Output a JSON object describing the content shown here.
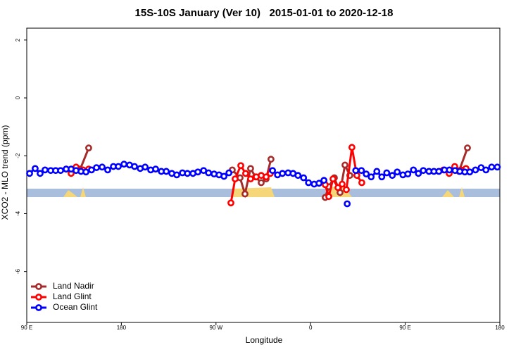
{
  "chart_data": {
    "type": "line",
    "title": "15S-10S January (Ver 10)   2015-01-01 to 2020-12-18",
    "x_label": "Longitude",
    "y_label": "XCO2 - MLO trend (ppm)",
    "xlim": [
      90,
      540
    ],
    "ylim": [
      -7.76,
      2.41
    ],
    "xticks": [
      {
        "value": 90,
        "label": "90 E"
      },
      180,
      {
        "value": 270,
        "label": "90 W"
      },
      {
        "value": 360,
        "label": "0"
      },
      {
        "value": 450,
        "label": "90 E"
      },
      {
        "value": 540,
        "label": "180"
      }
    ],
    "yticks": [
      2,
      0,
      -2,
      -4,
      -6
    ],
    "legend": "bottom-left",
    "series": [
      {
        "name": "Land Nadir",
        "color": "#a52a2a",
        "x": [
          140.9,
          148.9,
          null,
          285.5,
          292.9,
          297.6,
          302.9,
          307.6,
          313,
          317.7,
          322.3,
          null,
          373.9,
          377.3,
          382.6,
          388,
          392.7,
          397.3,
          null,
          493.2,
          501.1,
          509.2
        ],
        "values": [
          -2.46,
          -1.73,
          null,
          -2.49,
          -2.76,
          -3.32,
          -2.44,
          -2.73,
          -2.93,
          -2.8,
          -2.12,
          null,
          -3.44,
          -3.07,
          -2.76,
          -3.27,
          -2.32,
          -2.68,
          null,
          -2.51,
          -2.54,
          -1.73
        ]
      },
      {
        "name": "Land Glint",
        "color": "#ff0000",
        "x": [
          127.5,
          132.2,
          136.9,
          143.6,
          148.9,
          null,
          284.2,
          288.2,
          293.6,
          298.2,
          302.9,
          308.3,
          313,
          317.7,
          321.7,
          null,
          373.9,
          377.3,
          381.3,
          386,
          390,
          394,
          399.3,
          404,
          408.7,
          null,
          486.4,
          491.8,
          497.1,
          503.1,
          507.8
        ],
        "values": [
          -2.46,
          -2.61,
          -2.39,
          -2.49,
          -2.46,
          null,
          -3.63,
          -2.8,
          -2.34,
          -2.61,
          -2.8,
          -2.73,
          -2.68,
          -2.73,
          -2.61,
          null,
          -3.0,
          -3.41,
          -2.8,
          -3.1,
          -2.98,
          -3.17,
          -1.71,
          -2.68,
          -2.93,
          null,
          -2.49,
          -2.61,
          -2.37,
          -2.49,
          -2.44
        ]
      },
      {
        "name": "Ocean Glint",
        "color": "#0000ff",
        "x": [
          92.7,
          98,
          102.7,
          107.4,
          112.8,
          117.5,
          122.2,
          127.5,
          132.2,
          136.9,
          141.6,
          146.3,
          151.6,
          156.3,
          161.7,
          167,
          172.4,
          177.1,
          182.5,
          187.8,
          192.5,
          197.9,
          202.6,
          207.9,
          212.6,
          218,
          222.7,
          228,
          232.7,
          238.1,
          242.8,
          248.1,
          252.8,
          258.2,
          262.9,
          268.2,
          272.9,
          277.6,
          282.3,
          null,
          323.8,
          328.5,
          333.2,
          338.6,
          343.3,
          348,
          353.3,
          358,
          363.4,
          368,
          372.7,
          null,
          394.8,
          null,
          402.9,
          408.3,
          412.9,
          417.6,
          423,
          427.7,
          432.4,
          437.7,
          442.4,
          447.8,
          452.5,
          457.8,
          462.5,
          467.2,
          472.6,
          477.3,
          482,
          487.3,
          492,
          497.4,
          502,
          506.7,
          511.4,
          516.8,
          522.2,
          526.8,
          532.2,
          537.6
        ],
        "values": [
          -2.61,
          -2.44,
          -2.61,
          -2.49,
          -2.51,
          -2.51,
          -2.51,
          -2.46,
          -2.46,
          -2.51,
          -2.54,
          -2.56,
          -2.49,
          -2.41,
          -2.39,
          -2.49,
          -2.37,
          -2.37,
          -2.29,
          -2.32,
          -2.37,
          -2.44,
          -2.39,
          -2.49,
          -2.46,
          -2.54,
          -2.54,
          -2.61,
          -2.66,
          -2.59,
          -2.61,
          -2.61,
          -2.56,
          -2.51,
          -2.59,
          -2.63,
          -2.66,
          -2.71,
          -2.59,
          null,
          -2.51,
          -2.66,
          -2.61,
          -2.59,
          -2.61,
          -2.68,
          -2.76,
          -2.93,
          -2.98,
          -2.95,
          -2.85,
          null,
          -3.66,
          null,
          -2.51,
          -2.51,
          -2.63,
          -2.73,
          -2.54,
          -2.73,
          -2.59,
          -2.68,
          -2.56,
          -2.66,
          -2.63,
          -2.49,
          -2.61,
          -2.51,
          -2.54,
          -2.54,
          -2.54,
          -2.49,
          -2.49,
          -2.51,
          -2.54,
          -2.56,
          -2.56,
          -2.49,
          -2.41,
          -2.49,
          -2.39,
          -2.39
        ]
      }
    ]
  }
}
